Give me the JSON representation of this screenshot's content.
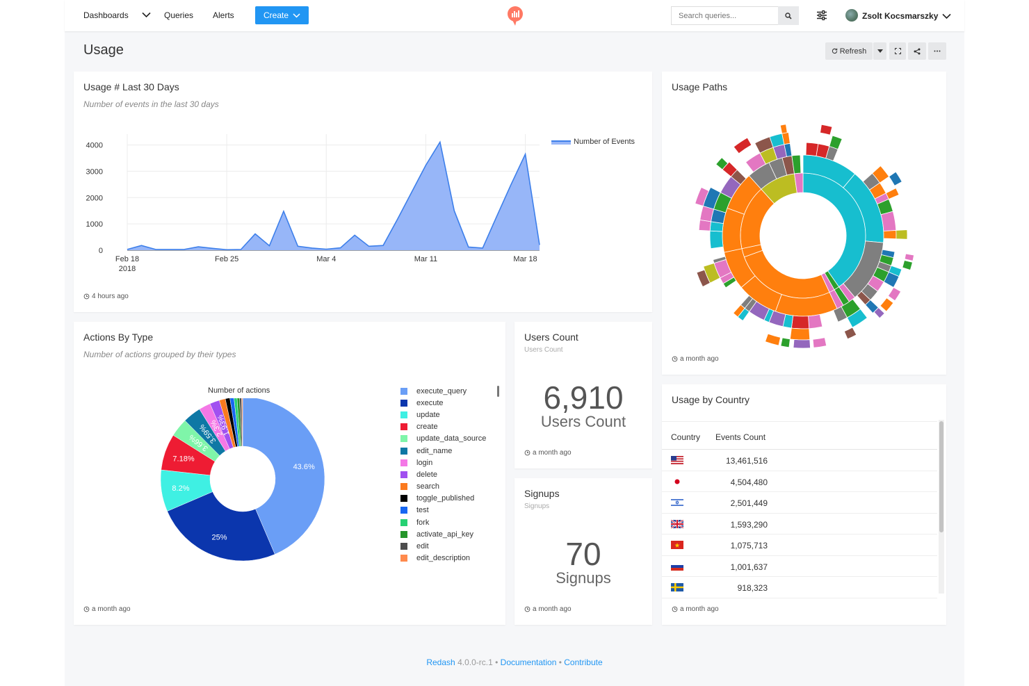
{
  "nav": {
    "dashboards": "Dashboards",
    "queries": "Queries",
    "alerts": "Alerts",
    "create": "Create",
    "search_placeholder": "Search queries...",
    "user": "Zsolt Kocsmarszky"
  },
  "page": {
    "title": "Usage",
    "refresh": "Refresh"
  },
  "widgets": {
    "usage30": {
      "title": "Usage # Last 30 Days",
      "desc": "Number of events in the last 30 days",
      "updated": "4 hours ago",
      "legend": "Number of Events"
    },
    "paths": {
      "title": "Usage Paths",
      "updated": "a month ago"
    },
    "actions": {
      "title": "Actions By Type",
      "desc": "Number of actions grouped by their types",
      "chart_title": "Number of actions",
      "updated": "a month ago"
    },
    "users": {
      "title": "Users Count",
      "subtitle": "Users Count",
      "value": "6,910",
      "label": "Users Count",
      "updated": "a month ago"
    },
    "signups": {
      "title": "Signups",
      "subtitle": "Signups",
      "value": "70",
      "label": "Signups",
      "updated": "a month ago"
    },
    "country": {
      "title": "Usage by Country",
      "col1": "Country",
      "col2": "Events Count",
      "rows": [
        {
          "country": "us-flag-icon",
          "count": "13,461,516"
        },
        {
          "country": "jp-flag-icon",
          "count": "4,504,480"
        },
        {
          "country": "il-flag-icon",
          "count": "2,501,449"
        },
        {
          "country": "gb-flag-icon",
          "count": "1,593,290"
        },
        {
          "country": "vn-flag-icon",
          "count": "1,075,713"
        },
        {
          "country": "ru-flag-icon",
          "count": "1,001,637"
        },
        {
          "country": "se-flag-icon",
          "count": "918,323"
        }
      ],
      "updated": "a month ago"
    }
  },
  "footer": {
    "brand": "Redash",
    "version": "4.0.0-rc.1",
    "docs": "Documentation",
    "contribute": "Contribute"
  },
  "chart_data": [
    {
      "type": "area",
      "title": "",
      "legend": [
        "Number of Events"
      ],
      "x_ticks": [
        "Feb 18 2018",
        "Feb 25",
        "Mar 4",
        "Mar 11",
        "Mar 18"
      ],
      "ylim": [
        0,
        4200
      ],
      "y_ticks": [
        0,
        1000,
        2000,
        3000,
        4000
      ],
      "series": [
        {
          "name": "Number of Events",
          "color": "#3d7fea",
          "x": [
            "2018-02-18",
            "2018-02-19",
            "2018-02-20",
            "2018-02-21",
            "2018-02-22",
            "2018-02-23",
            "2018-02-24",
            "2018-02-25",
            "2018-02-26",
            "2018-02-27",
            "2018-02-28",
            "2018-03-01",
            "2018-03-02",
            "2018-03-03",
            "2018-03-04",
            "2018-03-05",
            "2018-03-06",
            "2018-03-07",
            "2018-03-08",
            "2018-03-09",
            "2018-03-10",
            "2018-03-11",
            "2018-03-12",
            "2018-03-13",
            "2018-03-14",
            "2018-03-15",
            "2018-03-16",
            "2018-03-17",
            "2018-03-18",
            "2018-03-19"
          ],
          "values": [
            30,
            180,
            30,
            30,
            30,
            130,
            70,
            20,
            30,
            620,
            170,
            1480,
            150,
            80,
            40,
            90,
            570,
            150,
            180,
            1170,
            2200,
            3230,
            4110,
            1500,
            120,
            80,
            1300,
            2500,
            3650,
            200
          ]
        }
      ]
    },
    {
      "type": "pie",
      "title": "Number of actions",
      "categories": [
        "execute_query",
        "execute",
        "update",
        "create",
        "update_data_source",
        "edit_name",
        "login",
        "delete",
        "search",
        "toggle_published",
        "test",
        "fork",
        "activate_api_key",
        "edit",
        "edit_description"
      ],
      "colors": [
        "#6a9ef6",
        "#0b36ad",
        "#3ff0e3",
        "#ee1c33",
        "#7ff5a9",
        "#0e78a5",
        "#f478e6",
        "#a150f0",
        "#fb7a1f",
        "#000000",
        "#1767f2",
        "#26d173",
        "#25952a",
        "#4d4d4d",
        "#ff8a4d"
      ],
      "values": [
        43.6,
        25,
        8.2,
        7.18,
        3.66,
        3.59,
        2.3,
        1.93,
        1.2,
        0.9,
        0.8,
        0.6,
        0.5,
        0.4,
        0.2
      ],
      "labels": [
        "43.6%",
        "25%",
        "8.2%",
        "7.18%",
        "3.66%",
        "3.59%",
        "2.3%",
        "1.93%"
      ]
    }
  ]
}
